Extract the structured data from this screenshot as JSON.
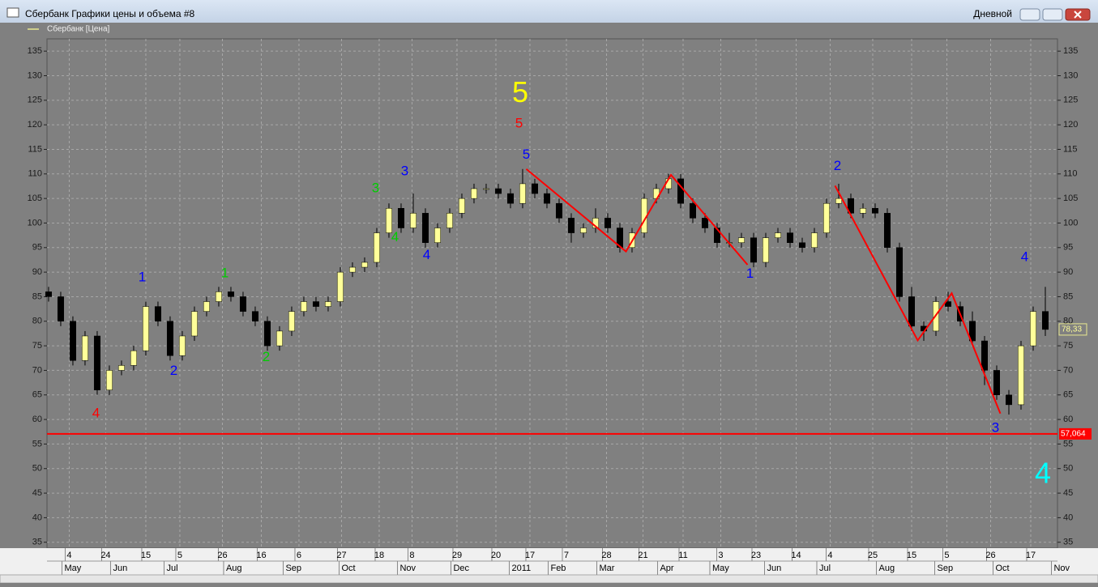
{
  "chart_data": {
    "type": "candlestick",
    "title": "Сбербанк Графики цены и объема #8",
    "period": "Дневной",
    "series": [
      {
        "name": "Сбербанк [Цена]",
        "up_color": "#ffff99",
        "down_color": "#000000",
        "legend_color": "#e8e890",
        "x": [
          0,
          1,
          2,
          3,
          4,
          5,
          6,
          7,
          8,
          9,
          10,
          11,
          12,
          13,
          14,
          15,
          16,
          17,
          18,
          19,
          20,
          21,
          22,
          23,
          24,
          25,
          26,
          27,
          28,
          29,
          30,
          31,
          32,
          33,
          34,
          35,
          36,
          37,
          38,
          39,
          40,
          41,
          42,
          43,
          44,
          45,
          46,
          47,
          48,
          49,
          50,
          51,
          52,
          53,
          54,
          55,
          56,
          57,
          58,
          59,
          60,
          61,
          62,
          63,
          64,
          65,
          66,
          67,
          68,
          69,
          70,
          71,
          72,
          73,
          74,
          75,
          76,
          77,
          78,
          79,
          80,
          81,
          82
        ],
        "ohlc": [
          [
            86,
            87,
            84,
            85
          ],
          [
            85,
            86,
            79,
            80
          ],
          [
            80,
            81,
            71,
            72
          ],
          [
            72,
            78,
            71,
            77
          ],
          [
            77,
            78,
            65,
            66
          ],
          [
            66,
            71,
            65,
            70
          ],
          [
            70,
            72,
            69,
            71
          ],
          [
            71,
            75,
            70,
            74
          ],
          [
            74,
            84,
            73,
            83
          ],
          [
            83,
            84,
            79,
            80
          ],
          [
            80,
            81,
            72,
            73
          ],
          [
            73,
            78,
            72,
            77
          ],
          [
            77,
            83,
            76,
            82
          ],
          [
            82,
            85,
            81,
            84
          ],
          [
            84,
            87,
            83,
            86
          ],
          [
            86,
            87,
            84,
            85
          ],
          [
            85,
            86,
            81,
            82
          ],
          [
            82,
            83,
            79,
            80
          ],
          [
            80,
            81,
            74,
            75
          ],
          [
            75,
            79,
            74,
            78
          ],
          [
            78,
            83,
            77,
            82
          ],
          [
            82,
            85,
            81,
            84
          ],
          [
            84,
            85,
            82,
            83
          ],
          [
            83,
            85,
            82,
            84
          ],
          [
            84,
            91,
            83,
            90
          ],
          [
            90,
            92,
            89,
            91
          ],
          [
            91,
            93,
            90,
            92
          ],
          [
            92,
            99,
            91,
            98
          ],
          [
            98,
            104,
            97,
            103
          ],
          [
            103,
            104,
            98,
            99
          ],
          [
            99,
            106,
            98,
            102
          ],
          [
            102,
            103,
            95,
            96
          ],
          [
            96,
            100,
            95,
            99
          ],
          [
            99,
            103,
            98,
            102
          ],
          [
            102,
            106,
            101,
            105
          ],
          [
            105,
            108,
            104,
            107
          ],
          [
            107,
            108,
            106,
            107
          ],
          [
            107,
            108,
            105,
            106
          ],
          [
            106,
            107,
            103,
            104
          ],
          [
            104,
            111,
            103,
            108
          ],
          [
            108,
            109,
            105,
            106
          ],
          [
            106,
            107,
            103,
            104
          ],
          [
            104,
            105,
            100,
            101
          ],
          [
            101,
            102,
            96,
            98
          ],
          [
            98,
            100,
            97,
            99
          ],
          [
            99,
            103,
            98,
            101
          ],
          [
            101,
            102,
            98,
            99
          ],
          [
            99,
            100,
            94,
            95
          ],
          [
            95,
            99,
            94,
            98
          ],
          [
            98,
            106,
            97,
            105
          ],
          [
            105,
            108,
            104,
            107
          ],
          [
            107,
            110,
            106,
            109
          ],
          [
            109,
            110,
            103,
            104
          ],
          [
            104,
            105,
            100,
            101
          ],
          [
            101,
            102,
            98,
            99
          ],
          [
            99,
            100,
            95,
            96
          ],
          [
            96,
            98,
            95,
            96
          ],
          [
            96,
            98,
            95,
            97
          ],
          [
            97,
            98,
            91,
            92
          ],
          [
            92,
            98,
            91,
            97
          ],
          [
            97,
            99,
            96,
            98
          ],
          [
            98,
            99,
            95,
            96
          ],
          [
            96,
            97,
            94,
            95
          ],
          [
            95,
            99,
            94,
            98
          ],
          [
            98,
            105,
            97,
            104
          ],
          [
            104,
            108,
            103,
            105
          ],
          [
            105,
            106,
            101,
            102
          ],
          [
            102,
            104,
            101,
            103
          ],
          [
            103,
            104,
            101,
            102
          ],
          [
            102,
            103,
            94,
            95
          ],
          [
            95,
            96,
            84,
            85
          ],
          [
            85,
            87,
            78,
            79
          ],
          [
            79,
            80,
            76,
            78
          ],
          [
            78,
            85,
            77,
            84
          ],
          [
            84,
            86,
            82,
            83
          ],
          [
            83,
            84,
            79,
            80
          ],
          [
            80,
            82,
            75,
            76
          ],
          [
            76,
            77,
            67,
            70
          ],
          [
            70,
            71,
            64,
            65
          ],
          [
            65,
            66,
            61,
            63
          ],
          [
            63,
            76,
            62,
            75
          ],
          [
            75,
            83,
            74,
            82
          ],
          [
            82,
            87,
            77,
            78.33
          ]
        ]
      }
    ],
    "xlim": [
      -0.13,
      83
    ],
    "ylim": [
      33.8,
      137.5
    ],
    "yticks": [
      35,
      40,
      45,
      50,
      55,
      60,
      65,
      70,
      75,
      80,
      85,
      90,
      95,
      100,
      105,
      110,
      115,
      120,
      125,
      130,
      135
    ],
    "xticks": [
      {
        "value": 1.7,
        "label": "4"
      },
      {
        "value": 4.7,
        "label": "24"
      },
      {
        "value": 8,
        "label": "15"
      },
      {
        "value": 10.8,
        "label": "5"
      },
      {
        "value": 14.3,
        "label": "26"
      },
      {
        "value": 17.5,
        "label": "16"
      },
      {
        "value": 20.6,
        "label": "6"
      },
      {
        "value": 24.1,
        "label": "27"
      },
      {
        "value": 27.2,
        "label": "18"
      },
      {
        "value": 29.9,
        "label": "8"
      },
      {
        "value": 33.6,
        "label": "29"
      },
      {
        "value": 36.8,
        "label": "20"
      },
      {
        "value": 39.6,
        "label": "17"
      },
      {
        "value": 42.6,
        "label": "7"
      },
      {
        "value": 45.9,
        "label": "28"
      },
      {
        "value": 48.9,
        "label": "21"
      },
      {
        "value": 52.2,
        "label": "11"
      },
      {
        "value": 55.3,
        "label": "3"
      },
      {
        "value": 58.2,
        "label": "23"
      },
      {
        "value": 61.5,
        "label": "14"
      },
      {
        "value": 64.3,
        "label": "4"
      },
      {
        "value": 67.8,
        "label": "25"
      },
      {
        "value": 71,
        "label": "15"
      },
      {
        "value": 73.9,
        "label": "5"
      },
      {
        "value": 77.5,
        "label": "26"
      },
      {
        "value": 80.8,
        "label": "17"
      }
    ],
    "xticks2": [
      {
        "value": 1.1,
        "label": "May"
      },
      {
        "value": 5.1,
        "label": "Jun"
      },
      {
        "value": 9.5,
        "label": "Jul"
      },
      {
        "value": 14.4,
        "label": "Aug"
      },
      {
        "value": 19.3,
        "label": "Sep"
      },
      {
        "value": 23.9,
        "label": "Oct"
      },
      {
        "value": 28.7,
        "label": "Nov"
      },
      {
        "value": 33.1,
        "label": "Dec"
      },
      {
        "value": 37.9,
        "label": "2011"
      },
      {
        "value": 41.1,
        "label": "Feb"
      },
      {
        "value": 45.1,
        "label": "Mar"
      },
      {
        "value": 50.1,
        "label": "Apr"
      },
      {
        "value": 54.4,
        "label": "May"
      },
      {
        "value": 58.9,
        "label": "Jun"
      },
      {
        "value": 63.2,
        "label": "Jul"
      },
      {
        "value": 68.1,
        "label": "Aug"
      },
      {
        "value": 72.9,
        "label": "Sep"
      },
      {
        "value": 77.7,
        "label": "Oct"
      },
      {
        "value": 82.5,
        "label": "Nov"
      }
    ],
    "grid": true,
    "hline": {
      "value": 57.064,
      "label": "57,064",
      "color": "#ff0000"
    },
    "last_price": {
      "value": 78.33,
      "label": "78,33"
    },
    "zigzag": [
      {
        "color": "#ff0000",
        "x": [
          39.3,
          47.5,
          51.2,
          57.5
        ],
        "y": [
          111,
          94.2,
          109.8,
          91.5
        ]
      },
      {
        "color": "#ff0000",
        "x": [
          64.7,
          71.5,
          74.3,
          78.3
        ],
        "y": [
          107.6,
          76.1,
          85.7,
          61.2
        ]
      }
    ],
    "annotations": [
      {
        "text": "4",
        "x": 3.9,
        "y": 61.2,
        "color": "#ff0000",
        "size": "small"
      },
      {
        "text": "1",
        "x": 7.7,
        "y": 88.9,
        "color": "#0000ff",
        "size": "small"
      },
      {
        "text": "2",
        "x": 10.3,
        "y": 69.8,
        "color": "#0000ff",
        "size": "small"
      },
      {
        "text": "1",
        "x": 14.5,
        "y": 89.7,
        "color": "#00cc00",
        "size": "small"
      },
      {
        "text": "2",
        "x": 17.9,
        "y": 72.6,
        "color": "#00cc00",
        "size": "small"
      },
      {
        "text": "3",
        "x": 26.9,
        "y": 107,
        "color": "#00cc00",
        "size": "small"
      },
      {
        "text": "4",
        "x": 28.5,
        "y": 97,
        "color": "#00cc00",
        "size": "small"
      },
      {
        "text": "3",
        "x": 29.3,
        "y": 110.5,
        "color": "#0000ff",
        "size": "small"
      },
      {
        "text": "4",
        "x": 31.1,
        "y": 93.4,
        "color": "#0000ff",
        "size": "small"
      },
      {
        "text": "5",
        "x": 38.8,
        "y": 126.2,
        "color": "#ffff00",
        "size": "large"
      },
      {
        "text": "5",
        "x": 38.7,
        "y": 120.2,
        "color": "#ff0000",
        "size": "small"
      },
      {
        "text": "5",
        "x": 39.3,
        "y": 113.8,
        "color": "#0000ff",
        "size": "small"
      },
      {
        "text": "1",
        "x": 57.7,
        "y": 89.6,
        "color": "#0000ff",
        "size": "small"
      },
      {
        "text": "2",
        "x": 64.9,
        "y": 111.5,
        "color": "#0000ff",
        "size": "small"
      },
      {
        "text": "3",
        "x": 77.9,
        "y": 58.2,
        "color": "#0000ff",
        "size": "small"
      },
      {
        "text": "4",
        "x": 80.3,
        "y": 93,
        "color": "#0000ff",
        "size": "small"
      },
      {
        "text": "4",
        "x": 81.8,
        "y": 48.6,
        "color": "#00ffff",
        "size": "large"
      }
    ]
  }
}
